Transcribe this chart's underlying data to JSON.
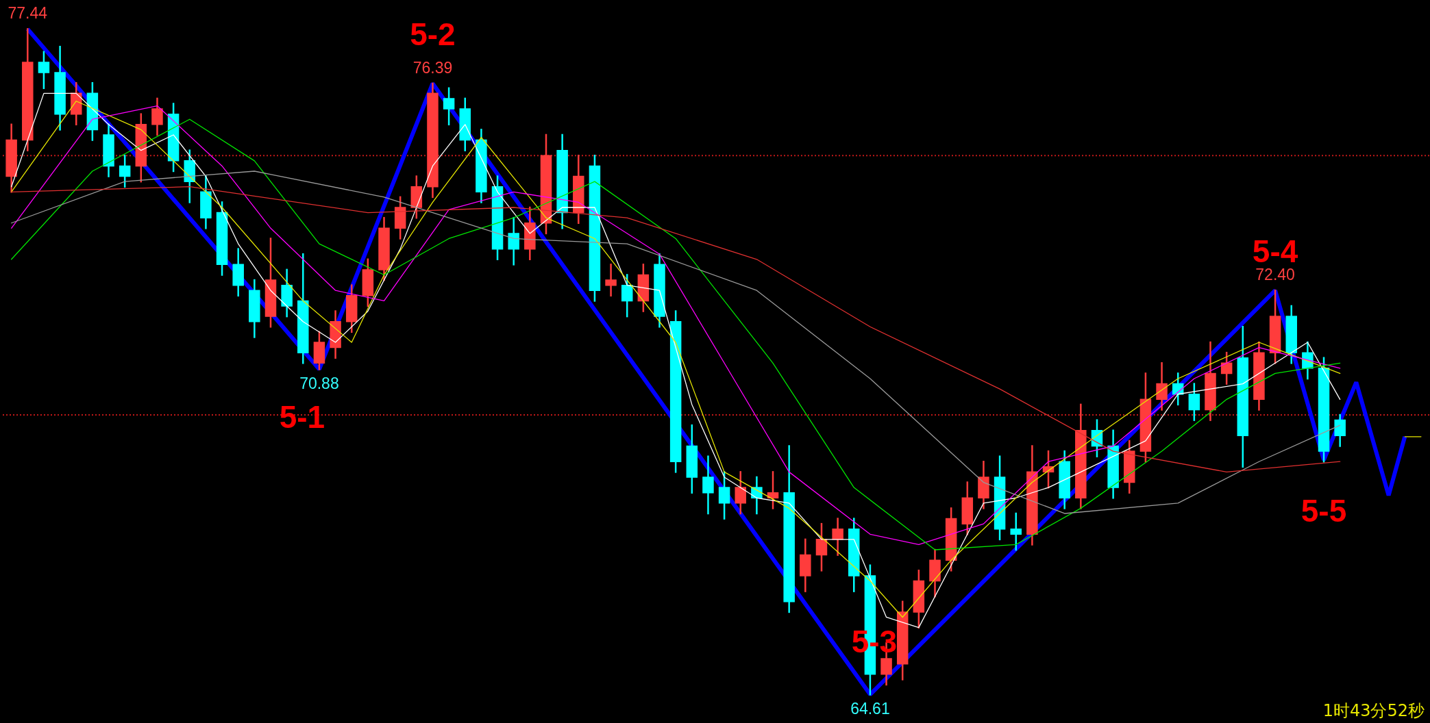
{
  "chart_data": {
    "type": "candlestick",
    "categories": [
      null,
      null,
      null,
      null,
      null,
      null,
      null,
      null,
      null,
      null,
      null,
      null,
      null,
      null,
      null,
      null,
      null,
      null,
      null,
      null,
      null,
      null,
      null,
      null,
      null,
      null,
      null,
      null,
      null,
      null,
      null,
      null,
      null,
      null,
      null,
      null,
      null,
      null,
      null,
      null,
      null,
      null,
      null,
      null,
      null,
      null,
      null,
      null,
      null,
      null,
      null,
      null,
      null,
      null,
      null,
      null,
      null,
      null,
      null,
      null,
      null,
      null,
      null,
      null,
      null,
      null,
      null,
      null,
      null,
      null,
      null,
      null,
      null,
      null,
      null,
      null,
      null,
      null,
      null,
      null,
      null,
      null,
      null,
      null,
      null,
      null,
      null,
      null
    ],
    "ohlc": [
      [
        74.6,
        75.6,
        74.3,
        75.3
      ],
      [
        75.3,
        77.44,
        75.1,
        76.8
      ],
      [
        76.8,
        77.0,
        76.3,
        76.6
      ],
      [
        76.6,
        77.1,
        75.5,
        75.8
      ],
      [
        75.8,
        76.4,
        75.6,
        76.2
      ],
      [
        76.2,
        76.4,
        75.3,
        75.5
      ],
      [
        75.4,
        75.6,
        74.6,
        74.8
      ],
      [
        74.8,
        75.0,
        74.4,
        74.6
      ],
      [
        74.8,
        75.8,
        74.5,
        75.6
      ],
      [
        75.6,
        76.1,
        75.4,
        75.9
      ],
      [
        75.8,
        76.0,
        74.7,
        74.9
      ],
      [
        74.9,
        75.1,
        74.1,
        74.5
      ],
      [
        74.3,
        74.6,
        73.6,
        73.8
      ],
      [
        73.9,
        74.1,
        72.7,
        72.9
      ],
      [
        72.9,
        73.2,
        72.3,
        72.5
      ],
      [
        72.4,
        72.6,
        71.5,
        71.8
      ],
      [
        71.9,
        73.4,
        71.7,
        72.6
      ],
      [
        72.5,
        72.8,
        71.9,
        72.1
      ],
      [
        72.2,
        73.1,
        71.0,
        71.2
      ],
      [
        71.0,
        71.6,
        70.88,
        71.4
      ],
      [
        71.3,
        72.0,
        71.1,
        71.8
      ],
      [
        71.8,
        72.5,
        71.6,
        72.3
      ],
      [
        72.3,
        73.0,
        72.1,
        72.8
      ],
      [
        72.8,
        73.8,
        72.6,
        73.6
      ],
      [
        73.6,
        74.2,
        73.4,
        74.0
      ],
      [
        74.0,
        74.6,
        73.8,
        74.4
      ],
      [
        74.4,
        76.39,
        74.2,
        76.2
      ],
      [
        76.1,
        76.3,
        75.6,
        75.9
      ],
      [
        75.9,
        76.1,
        75.1,
        75.3
      ],
      [
        75.3,
        75.5,
        74.1,
        74.3
      ],
      [
        74.4,
        74.6,
        73.0,
        73.2
      ],
      [
        73.5,
        73.8,
        72.9,
        73.2
      ],
      [
        73.2,
        74.0,
        73.0,
        73.7
      ],
      [
        73.7,
        75.4,
        73.5,
        75.0
      ],
      [
        75.1,
        75.4,
        73.6,
        73.9
      ],
      [
        73.9,
        75.0,
        73.7,
        74.6
      ],
      [
        74.8,
        75.0,
        72.2,
        72.4
      ],
      [
        72.5,
        72.9,
        72.3,
        72.6
      ],
      [
        72.5,
        72.7,
        71.9,
        72.2
      ],
      [
        72.2,
        72.9,
        72.0,
        72.7
      ],
      [
        72.9,
        73.1,
        71.7,
        71.9
      ],
      [
        71.8,
        72.0,
        68.9,
        69.1
      ],
      [
        69.4,
        69.8,
        68.5,
        68.8
      ],
      [
        68.8,
        69.2,
        68.1,
        68.5
      ],
      [
        68.6,
        68.9,
        68.0,
        68.3
      ],
      [
        68.3,
        68.9,
        68.1,
        68.6
      ],
      [
        68.6,
        68.8,
        68.1,
        68.4
      ],
      [
        68.4,
        68.9,
        68.2,
        68.5
      ],
      [
        68.5,
        69.4,
        66.2,
        66.4
      ],
      [
        66.9,
        67.6,
        66.6,
        67.3
      ],
      [
        67.3,
        67.9,
        67.0,
        67.6
      ],
      [
        67.6,
        68.0,
        67.3,
        67.8
      ],
      [
        67.8,
        68.0,
        66.6,
        66.9
      ],
      [
        66.9,
        67.1,
        64.61,
        65.0
      ],
      [
        65.0,
        65.6,
        64.8,
        65.3
      ],
      [
        65.2,
        66.4,
        64.9,
        66.2
      ],
      [
        66.2,
        67.0,
        65.9,
        66.8
      ],
      [
        66.8,
        67.4,
        66.5,
        67.2
      ],
      [
        67.2,
        68.2,
        67.0,
        68.0
      ],
      [
        67.9,
        68.7,
        67.7,
        68.4
      ],
      [
        68.4,
        69.1,
        68.2,
        68.8
      ],
      [
        68.8,
        69.2,
        67.6,
        67.8
      ],
      [
        67.8,
        68.1,
        67.4,
        67.7
      ],
      [
        67.7,
        69.4,
        67.5,
        68.9
      ],
      [
        68.9,
        69.3,
        68.6,
        69.0
      ],
      [
        69.1,
        69.3,
        68.2,
        68.4
      ],
      [
        68.4,
        70.2,
        68.2,
        69.7
      ],
      [
        69.7,
        69.9,
        69.2,
        69.4
      ],
      [
        69.4,
        69.7,
        68.4,
        68.6
      ],
      [
        68.7,
        69.5,
        68.5,
        69.3
      ],
      [
        69.3,
        70.8,
        69.1,
        70.3
      ],
      [
        70.3,
        71.0,
        70.1,
        70.6
      ],
      [
        70.6,
        70.8,
        70.2,
        70.4
      ],
      [
        70.4,
        70.6,
        69.9,
        70.1
      ],
      [
        70.1,
        71.4,
        69.9,
        70.8
      ],
      [
        70.8,
        71.2,
        70.6,
        71.0
      ],
      [
        71.1,
        71.7,
        69.0,
        69.6
      ],
      [
        70.3,
        71.4,
        70.1,
        71.2
      ],
      [
        71.2,
        72.4,
        71.0,
        71.9
      ],
      [
        71.9,
        72.1,
        71.0,
        71.2
      ],
      [
        71.2,
        71.4,
        70.7,
        70.9
      ],
      [
        70.9,
        71.1,
        69.1,
        69.3
      ],
      [
        69.9,
        70.0,
        69.4,
        69.6
      ],
      null,
      null,
      null,
      null,
      null
    ],
    "colors": [
      "#ff3c3c",
      "#ff3c3c",
      "#00ffff",
      "#00ffff",
      "#ff3c3c",
      "#00ffff",
      "#00ffff",
      "#00ffff",
      "#ff3c3c",
      "#ff3c3c",
      "#00ffff",
      "#00ffff",
      "#00ffff",
      "#00ffff",
      "#00ffff",
      "#00ffff",
      "#ff3c3c",
      "#00ffff",
      "#00ffff",
      "#ff3c3c",
      "#ff3c3c",
      "#ff3c3c",
      "#ff3c3c",
      "#ff3c3c",
      "#ff3c3c",
      "#ff3c3c",
      "#ff3c3c",
      "#00ffff",
      "#00ffff",
      "#00ffff",
      "#00ffff",
      "#00ffff",
      "#ff3c3c",
      "#ff3c3c",
      "#00ffff",
      "#ff3c3c",
      "#00ffff",
      "#ff3c3c",
      "#00ffff",
      "#ff3c3c",
      "#00ffff",
      "#00ffff",
      "#00ffff",
      "#00ffff",
      "#00ffff",
      "#ff3c3c",
      "#00ffff",
      "#ff3c3c",
      "#00ffff",
      "#ff3c3c",
      "#ff3c3c",
      "#ff3c3c",
      "#00ffff",
      "#00ffff",
      "#ff3c3c",
      "#ff3c3c",
      "#ff3c3c",
      "#ff3c3c",
      "#ff3c3c",
      "#ff3c3c",
      "#ff3c3c",
      "#00ffff",
      "#00ffff",
      "#ff3c3c",
      "#ff3c3c",
      "#00ffff",
      "#ff3c3c",
      "#00ffff",
      "#00ffff",
      "#ff3c3c",
      "#ff3c3c",
      "#ff3c3c",
      "#00ffff",
      "#00ffff",
      "#ff3c3c",
      "#ff3c3c",
      "#00ffff",
      "#ff3c3c",
      "#ff3c3c",
      "#00ffff",
      "#00ffff",
      "#00ffff",
      "#00ffff",
      null,
      null,
      null,
      null,
      null
    ],
    "series": [
      {
        "type": "line",
        "color": "#ffffff",
        "values": [
          74.4,
          null,
          76.2,
          null,
          76.2,
          null,
          75.6,
          null,
          75.1,
          null,
          75.4,
          null,
          74.6,
          null,
          73.3,
          null,
          72.4,
          null,
          71.8,
          null,
          71.4,
          null,
          72.0,
          null,
          73.2,
          null,
          74.8,
          null,
          75.6,
          null,
          74.3,
          null,
          73.5,
          null,
          74.0,
          null,
          74.0,
          null,
          72.5,
          null,
          72.4,
          null,
          70.2,
          null,
          68.8,
          null,
          68.4,
          null,
          68.3,
          null,
          67.6,
          null,
          67.6,
          null,
          66.1,
          null,
          65.9,
          null,
          67.1,
          null,
          68.3,
          null,
          68.4,
          null,
          68.6,
          null,
          68.9,
          null,
          69.2,
          null,
          69.5,
          null,
          70.4,
          null,
          70.5,
          null,
          70.6,
          null,
          71.0,
          null,
          71.4,
          null,
          70.3,
          null,
          null,
          null,
          null,
          null
        ]
      },
      {
        "type": "line",
        "color": "#e6e600",
        "values": [
          74.3,
          null,
          null,
          null,
          76.05,
          null,
          null,
          null,
          75.5,
          null,
          null,
          null,
          null,
          74.0,
          null,
          null,
          null,
          null,
          72.2,
          null,
          null,
          71.4,
          null,
          72.7,
          null,
          null,
          74.1,
          null,
          null,
          75.35,
          null,
          null,
          null,
          73.8,
          null,
          null,
          73.4,
          null,
          null,
          null,
          null,
          71.4,
          null,
          null,
          68.9,
          null,
          null,
          null,
          68.2,
          null,
          null,
          null,
          null,
          66.8,
          null,
          66.1,
          null,
          null,
          67.2,
          null,
          null,
          null,
          null,
          68.7,
          null,
          null,
          null,
          69.6,
          null,
          null,
          null,
          null,
          70.7,
          null,
          null,
          null,
          null,
          71.4,
          null,
          null,
          null,
          null,
          70.8,
          null,
          null,
          null,
          null,
          null
        ]
      },
      {
        "type": "line",
        "color": "#ff00ff",
        "values": [
          73.6,
          null,
          null,
          null,
          null,
          75.7,
          null,
          null,
          null,
          75.96,
          null,
          null,
          null,
          74.8,
          null,
          null,
          73.6,
          null,
          null,
          null,
          72.4,
          null,
          null,
          72.2,
          null,
          null,
          null,
          73.96,
          null,
          null,
          null,
          74.3,
          null,
          null,
          null,
          74.1,
          null,
          null,
          null,
          null,
          73.1,
          null,
          null,
          null,
          71.0,
          null,
          null,
          null,
          68.9,
          null,
          null,
          null,
          null,
          67.7,
          null,
          null,
          67.5,
          null,
          null,
          null,
          67.9,
          null,
          null,
          null,
          69.1,
          null,
          null,
          null,
          69.4,
          null,
          null,
          null,
          null,
          70.7,
          null,
          null,
          null,
          71.3,
          null,
          null,
          null,
          null,
          70.9,
          null,
          null,
          null,
          null,
          null
        ]
      },
      {
        "type": "line",
        "color": "#00e600",
        "values": [
          73.0,
          null,
          null,
          null,
          null,
          74.7,
          null,
          null,
          null,
          null,
          null,
          75.7,
          null,
          null,
          null,
          74.9,
          null,
          null,
          null,
          73.3,
          null,
          null,
          null,
          72.7,
          null,
          null,
          null,
          73.4,
          null,
          null,
          null,
          73.8,
          null,
          null,
          null,
          null,
          74.5,
          null,
          null,
          null,
          null,
          73.4,
          null,
          null,
          null,
          null,
          null,
          71.0,
          null,
          null,
          null,
          null,
          68.6,
          null,
          null,
          null,
          null,
          67.4,
          null,
          null,
          null,
          null,
          67.5,
          null,
          null,
          null,
          68.2,
          null,
          null,
          null,
          null,
          69.3,
          null,
          null,
          null,
          70.3,
          null,
          null,
          70.8,
          null,
          null,
          null,
          71.0,
          null,
          null,
          null,
          null,
          null
        ]
      },
      {
        "type": "line",
        "color": "#9a9a9a",
        "values": [
          73.7,
          null,
          null,
          null,
          null,
          null,
          null,
          74.5,
          null,
          null,
          null,
          null,
          null,
          null,
          null,
          74.7,
          null,
          null,
          null,
          null,
          null,
          null,
          null,
          74.2,
          null,
          null,
          null,
          null,
          null,
          null,
          null,
          73.4,
          null,
          null,
          null,
          null,
          null,
          null,
          73.3,
          null,
          null,
          null,
          null,
          null,
          null,
          null,
          72.4,
          null,
          null,
          null,
          null,
          null,
          null,
          70.7,
          null,
          null,
          null,
          null,
          null,
          null,
          68.7,
          null,
          null,
          null,
          null,
          68.1,
          null,
          null,
          null,
          null,
          null,
          null,
          68.3,
          null,
          null,
          null,
          null,
          69.1,
          null,
          null,
          null,
          null,
          69.8,
          null,
          null,
          null,
          null,
          null
        ]
      },
      {
        "type": "line",
        "color": "#e03030",
        "values": [
          74.3,
          null,
          null,
          null,
          null,
          null,
          null,
          null,
          null,
          null,
          null,
          74.4,
          null,
          null,
          null,
          null,
          null,
          null,
          null,
          null,
          null,
          null,
          73.9,
          null,
          null,
          null,
          null,
          null,
          null,
          null,
          null,
          74.0,
          null,
          null,
          null,
          null,
          null,
          null,
          73.8,
          null,
          null,
          null,
          null,
          null,
          null,
          null,
          73.0,
          null,
          null,
          null,
          null,
          null,
          null,
          71.7,
          null,
          null,
          null,
          null,
          null,
          null,
          null,
          70.5,
          null,
          null,
          null,
          null,
          null,
          null,
          69.3,
          null,
          null,
          null,
          null,
          null,
          null,
          68.9,
          null,
          null,
          null,
          null,
          null,
          null,
          69.1,
          null,
          null,
          null,
          null,
          null
        ]
      },
      {
        "type": "line",
        "color": "#0000ff",
        "values": [
          null,
          77.44,
          null,
          null,
          null,
          null,
          null,
          null,
          null,
          null,
          null,
          null,
          null,
          null,
          null,
          null,
          null,
          null,
          null,
          70.88,
          null,
          null,
          null,
          null,
          null,
          null,
          76.39,
          null,
          null,
          null,
          null,
          null,
          null,
          null,
          null,
          null,
          null,
          null,
          null,
          null,
          null,
          null,
          null,
          null,
          null,
          null,
          null,
          null,
          null,
          null,
          null,
          null,
          null,
          64.61,
          null,
          null,
          null,
          null,
          null,
          null,
          null,
          null,
          null,
          null,
          null,
          null,
          null,
          null,
          null,
          null,
          null,
          null,
          null,
          null,
          null,
          null,
          null,
          null,
          72.4,
          null,
          null,
          69.13,
          null,
          70.63,
          null,
          68.45,
          69.58,
          null
        ]
      },
      {
        "type": "line",
        "color": "#e6e600",
        "values": [
          null,
          null,
          null,
          null,
          null,
          null,
          null,
          null,
          null,
          null,
          null,
          null,
          null,
          null,
          null,
          null,
          null,
          null,
          null,
          null,
          null,
          null,
          null,
          null,
          null,
          null,
          null,
          null,
          null,
          null,
          null,
          null,
          null,
          null,
          null,
          null,
          null,
          null,
          null,
          null,
          null,
          null,
          null,
          null,
          null,
          null,
          null,
          null,
          null,
          null,
          null,
          null,
          null,
          null,
          null,
          null,
          null,
          null,
          null,
          null,
          null,
          null,
          null,
          null,
          null,
          null,
          null,
          null,
          null,
          null,
          null,
          null,
          null,
          null,
          null,
          null,
          null,
          null,
          null,
          null,
          null,
          null,
          null,
          null,
          null,
          null,
          69.58,
          69.58
        ]
      }
    ],
    "ylim": [
      64.1,
      78.0
    ],
    "tick_labels": false,
    "ref_lines": [
      {
        "axis": "y",
        "value": 75,
        "color": "#c01818",
        "line_style": "dotted"
      },
      {
        "axis": "y",
        "value": 70,
        "color": "#c01818",
        "line_style": "dotted"
      }
    ],
    "annotations": [
      {
        "text": "77.44",
        "y": 77.44
      },
      {
        "text": "76.39",
        "y": 76.39
      },
      {
        "text": "70.88",
        "y": 70.88
      },
      {
        "text": "64.61",
        "y": 64.61
      },
      {
        "text": "72.40",
        "y": 72.4
      },
      "5-1",
      "5-2",
      "5-3",
      "5-4",
      "5-5",
      "1时43分52秒"
    ]
  }
}
